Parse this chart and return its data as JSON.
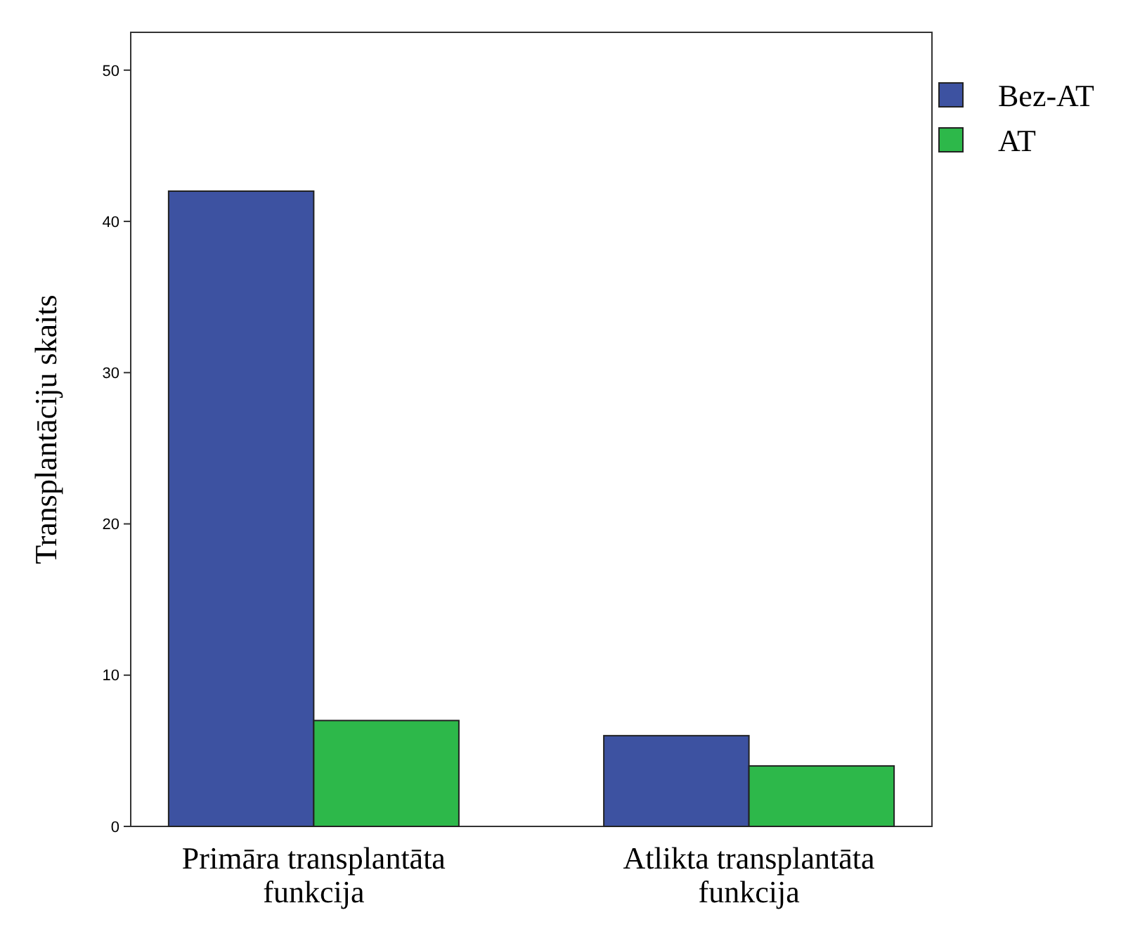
{
  "chart_data": {
    "type": "bar",
    "ylabel": "Transplantāciju skaits",
    "categories": [
      "Primāra transplantāta funkcija",
      "Atlikta transplantāta funkcija"
    ],
    "series": [
      {
        "name": "Bez-AT",
        "color": "#3d52a1",
        "values": [
          42,
          6
        ]
      },
      {
        "name": "AT",
        "color": "#2db84a",
        "values": [
          7,
          4
        ]
      }
    ],
    "ylim": [
      0,
      52.5
    ],
    "yticks": [
      0,
      10,
      20,
      30,
      40,
      50
    ],
    "grid": false,
    "legend": "top right"
  }
}
